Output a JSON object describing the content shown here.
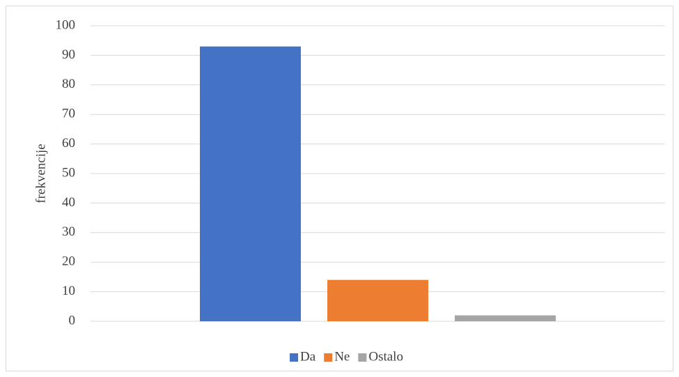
{
  "chart_data": {
    "type": "bar",
    "y_label": "frekvencije",
    "categories": [
      null
    ],
    "series": [
      {
        "name": "Da",
        "color": "#4472c4",
        "values": [
          93
        ]
      },
      {
        "name": "Ne",
        "color": "#ed7d31",
        "values": [
          14
        ]
      },
      {
        "name": "Ostalo",
        "color": "#a5a5a5",
        "values": [
          2
        ]
      }
    ],
    "ylim": [
      0,
      100
    ],
    "yticks": [
      0,
      10,
      20,
      30,
      40,
      50,
      60,
      70,
      80,
      90,
      100
    ],
    "grid": true,
    "legend": "bottom"
  }
}
